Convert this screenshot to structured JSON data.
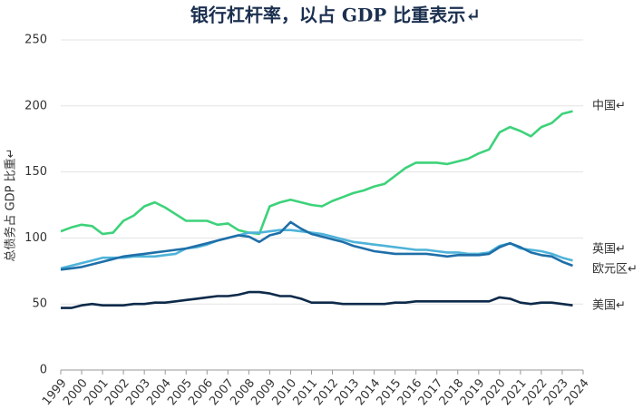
{
  "chart_data": {
    "type": "line",
    "title": "银行杠杆率，以占 GDP 比重表示↵",
    "y_label": "总债务占 GDP 比重↵",
    "x": [
      1999,
      1999.5,
      2000,
      2000.5,
      2001,
      2001.5,
      2002,
      2002.5,
      2003,
      2003.5,
      2004,
      2004.5,
      2005,
      2005.5,
      2006,
      2006.5,
      2007,
      2007.5,
      2008,
      2008.5,
      2009,
      2009.5,
      2010,
      2010.5,
      2011,
      2011.5,
      2012,
      2012.5,
      2013,
      2013.5,
      2014,
      2014.5,
      2015,
      2015.5,
      2016,
      2016.5,
      2017,
      2017.5,
      2018,
      2018.5,
      2019,
      2019.5,
      2020,
      2020.5,
      2021,
      2021.5,
      2022,
      2022.5,
      2023,
      2023.5
    ],
    "series": [
      {
        "name": "中国↵",
        "color": "#3dd27a",
        "values": [
          105,
          108,
          110,
          109,
          103,
          104,
          113,
          117,
          124,
          127,
          123,
          118,
          113,
          113,
          113,
          110,
          111,
          106,
          104,
          103,
          124,
          127,
          129,
          127,
          125,
          124,
          128,
          131,
          134,
          136,
          139,
          141,
          147,
          153,
          157,
          157,
          157,
          156,
          158,
          160,
          164,
          167,
          180,
          184,
          181,
          177,
          184,
          187,
          194,
          196
        ]
      },
      {
        "name": "英国↵",
        "color": "#4fb3d9",
        "values": [
          77,
          79,
          81,
          83,
          85,
          85,
          85,
          86,
          86,
          86,
          87,
          88,
          92,
          93,
          95,
          98,
          100,
          102,
          104,
          104,
          105,
          106,
          106,
          105,
          104,
          103,
          101,
          99,
          97,
          96,
          95,
          94,
          93,
          92,
          91,
          91,
          90,
          89,
          89,
          88,
          88,
          89,
          94,
          96,
          92,
          91,
          90,
          88,
          85,
          83
        ]
      },
      {
        "name": "欧元区↵",
        "color": "#1f6fa8",
        "values": [
          76,
          77,
          78,
          80,
          82,
          84,
          86,
          87,
          88,
          89,
          90,
          91,
          92,
          94,
          96,
          98,
          100,
          102,
          101,
          97,
          102,
          104,
          112,
          107,
          103,
          101,
          99,
          97,
          94,
          92,
          90,
          89,
          88,
          88,
          88,
          88,
          87,
          86,
          87,
          87,
          87,
          88,
          93,
          96,
          93,
          89,
          87,
          86,
          82,
          79
        ]
      },
      {
        "name": "美国↵",
        "color": "#0d2a4a",
        "values": [
          47,
          47,
          49,
          50,
          49,
          49,
          49,
          50,
          50,
          51,
          51,
          52,
          53,
          54,
          55,
          56,
          56,
          57,
          59,
          59,
          58,
          56,
          56,
          54,
          51,
          51,
          51,
          50,
          50,
          50,
          50,
          50,
          51,
          51,
          52,
          52,
          52,
          52,
          52,
          52,
          52,
          52,
          55,
          54,
          51,
          50,
          51,
          51,
          50,
          49
        ]
      }
    ],
    "xlim": [
      1999,
      2024
    ],
    "xticks": [
      1999,
      2000,
      2001,
      2002,
      2003,
      2004,
      2005,
      2006,
      2007,
      2008,
      2009,
      2010,
      2011,
      2012,
      2013,
      2014,
      2015,
      2016,
      2017,
      2018,
      2019,
      2020,
      2021,
      2022,
      2023,
      2024
    ],
    "ylim": [
      0,
      250
    ],
    "yticks": [
      0,
      50,
      100,
      150,
      200,
      250
    ],
    "grid": true
  }
}
